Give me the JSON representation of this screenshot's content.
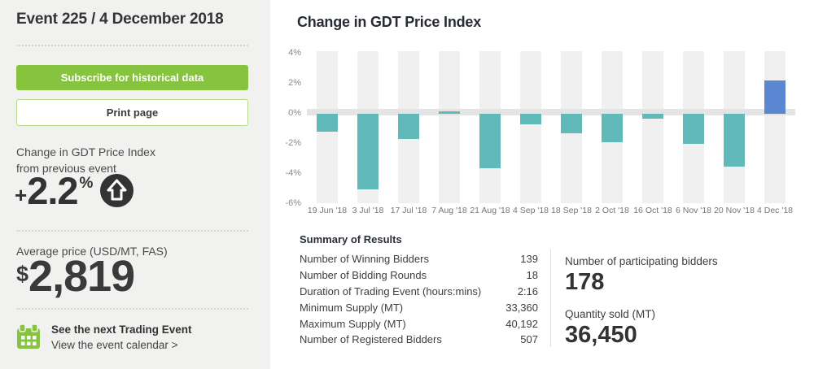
{
  "sidebar": {
    "title": "Event 225 / 4 December 2018",
    "subscribe_button": "Subscribe for historical data",
    "print_button": "Print page",
    "change_label_line1": "Change in GDT Price Index",
    "change_label_line2": "from previous event",
    "change_sign": "+",
    "change_value": "2.2",
    "change_unit": "%",
    "avg_price_label": "Average price (USD/MT, FAS)",
    "avg_price_currency": "$",
    "avg_price_value": "2,819",
    "next_event_title": "See the next Trading Event",
    "next_event_link": "View the event calendar >"
  },
  "main": {
    "chart_title": "Change in GDT Price Index",
    "summary": {
      "heading": "Summary of Results",
      "rows": [
        {
          "label": "Number of Winning Bidders",
          "value": "139"
        },
        {
          "label": "Number of Bidding Rounds",
          "value": "18"
        },
        {
          "label": "Duration of Trading Event (hours:mins)",
          "value": "2:16"
        },
        {
          "label": "Minimum Supply (MT)",
          "value": "33,360"
        },
        {
          "label": "Maximum Supply (MT)",
          "value": "40,192"
        },
        {
          "label": "Number of Registered Bidders",
          "value": "507"
        }
      ]
    },
    "stats": [
      {
        "label": "Number of participating bidders",
        "value": "178"
      },
      {
        "label": "Quantity sold (MT)",
        "value": "36,450"
      }
    ]
  },
  "chart_data": {
    "type": "bar",
    "title": "Change in GDT Price Index",
    "categories": [
      "19 Jun '18",
      "3 Jul '18",
      "17 Jul '18",
      "7 Aug '18",
      "21 Aug '18",
      "4 Sep '18",
      "18 Sep '18",
      "2 Oct '18",
      "16 Oct '18",
      "6 Nov '18",
      "20 Nov '18",
      "4 Dec '18"
    ],
    "values": [
      -1.2,
      -5.0,
      -1.7,
      0.1,
      -3.6,
      -0.7,
      -1.3,
      -1.9,
      -0.3,
      -2.0,
      -3.5,
      2.2
    ],
    "xlabel": "",
    "ylabel": "",
    "ylim": [
      -6,
      4
    ],
    "yticks": [
      "4%",
      "2%",
      "0%",
      "-2%",
      "-4%",
      "-6%"
    ],
    "grid": "zero-band-only",
    "legend": "none",
    "bar_color": "#62b9ba",
    "highlight_color": "#5b87d2",
    "highlight_index": 11
  },
  "colors": {
    "accent_green": "#86c440",
    "bar_teal": "#62b9ba",
    "bar_blue": "#5b87d2",
    "sidebar_bg": "#f1f1ef",
    "track_gray": "#f0f0f0",
    "zero_band": "#e4e4e4",
    "text_dark": "#333333"
  }
}
